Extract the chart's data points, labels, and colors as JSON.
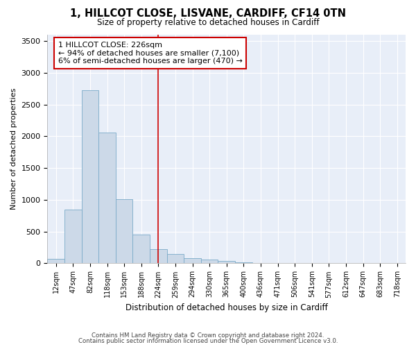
{
  "title_line1": "1, HILLCOT CLOSE, LISVANE, CARDIFF, CF14 0TN",
  "title_line2": "Size of property relative to detached houses in Cardiff",
  "xlabel": "Distribution of detached houses by size in Cardiff",
  "ylabel": "Number of detached properties",
  "bar_color": "#ccd9e8",
  "bar_edge_color": "#7aaac8",
  "vline_color": "#cc0000",
  "annotation_text": "1 HILLCOT CLOSE: 226sqm\n← 94% of detached houses are smaller (7,100)\n6% of semi-detached houses are larger (470) →",
  "categories": [
    "12sqm",
    "47sqm",
    "82sqm",
    "118sqm",
    "153sqm",
    "188sqm",
    "224sqm",
    "259sqm",
    "294sqm",
    "330sqm",
    "365sqm",
    "400sqm",
    "436sqm",
    "471sqm",
    "506sqm",
    "541sqm",
    "577sqm",
    "612sqm",
    "647sqm",
    "683sqm",
    "718sqm"
  ],
  "values": [
    75,
    850,
    2730,
    2060,
    1010,
    450,
    220,
    145,
    80,
    55,
    35,
    20,
    10,
    5,
    3,
    2,
    1,
    0,
    0,
    0,
    0
  ],
  "ylim": [
    0,
    3600
  ],
  "yticks": [
    0,
    500,
    1000,
    1500,
    2000,
    2500,
    3000,
    3500
  ],
  "footer_line1": "Contains HM Land Registry data © Crown copyright and database right 2024.",
  "footer_line2": "Contains public sector information licensed under the Open Government Licence v3.0.",
  "bg_color": "#ffffff",
  "plot_bg_color": "#e8eef8",
  "grid_color": "#ffffff"
}
